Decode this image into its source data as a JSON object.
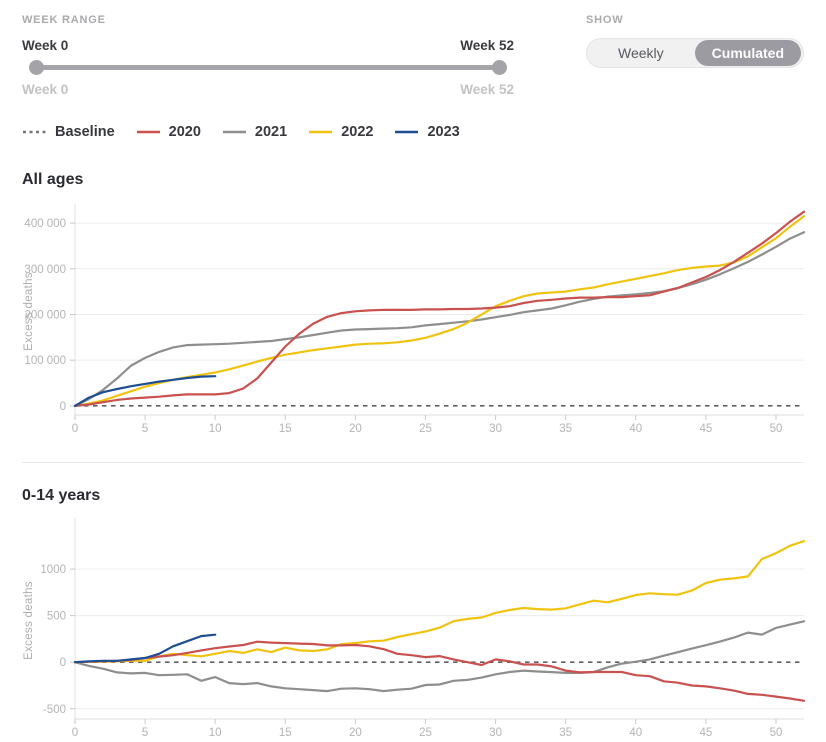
{
  "controls": {
    "week_range": {
      "label": "WEEK RANGE",
      "handle_start_value": "Week 0",
      "handle_end_value": "Week 52",
      "min_label": "Week 0",
      "max_label": "Week 52"
    },
    "show": {
      "label": "SHOW",
      "options": [
        "Weekly",
        "Cumulated"
      ],
      "selected": "Cumulated"
    }
  },
  "legend": {
    "items": [
      {
        "label": "Baseline",
        "color": "#77777b",
        "dashed": true
      },
      {
        "label": "2020",
        "color": "#c9514f",
        "dashed": false
      },
      {
        "label": "2021",
        "color": "#8e8e8e",
        "dashed": false
      },
      {
        "label": "2022",
        "color": "#f0c310",
        "dashed": false
      },
      {
        "label": "2023",
        "color": "#1d4e94",
        "dashed": false
      }
    ]
  },
  "chart_data": [
    {
      "type": "line",
      "title": "All ages",
      "xlabel": "",
      "ylabel": "Excess deaths",
      "x_unit": "week",
      "xlim": [
        0,
        52
      ],
      "ylim": [
        -20000,
        433000
      ],
      "xticks": [
        0,
        5,
        10,
        15,
        20,
        25,
        30,
        35,
        40,
        45,
        50
      ],
      "yticks": [
        {
          "value": 0,
          "label": "0"
        },
        {
          "value": 100000,
          "label": "100 000"
        },
        {
          "value": 200000,
          "label": "200 000"
        },
        {
          "value": 300000,
          "label": "300 000"
        },
        {
          "value": 400000,
          "label": "400 000"
        }
      ],
      "baseline_value": 0,
      "grid": true,
      "series": [
        {
          "name": "2020",
          "color": "#c9514f",
          "values": [
            0,
            3000,
            8000,
            13000,
            16000,
            18000,
            20000,
            23000,
            25000,
            25000,
            25000,
            28000,
            38000,
            60000,
            95000,
            130000,
            158000,
            180000,
            195000,
            203000,
            207000,
            209000,
            210000,
            210000,
            210000,
            211000,
            211000,
            212000,
            212000,
            213000,
            215000,
            218000,
            225000,
            230000,
            232000,
            235000,
            237000,
            237000,
            238000,
            238000,
            240000,
            242000,
            250000,
            258000,
            270000,
            282000,
            297000,
            315000,
            335000,
            355000,
            378000,
            403000,
            425000
          ]
        },
        {
          "name": "2021",
          "color": "#8e8e8e",
          "values": [
            0,
            15000,
            35000,
            60000,
            88000,
            105000,
            118000,
            128000,
            133000,
            134000,
            135000,
            136000,
            138000,
            140000,
            142000,
            146000,
            150000,
            155000,
            160000,
            165000,
            167000,
            168000,
            169000,
            170000,
            172000,
            176000,
            179000,
            182000,
            185000,
            189000,
            194000,
            199000,
            205000,
            209000,
            213000,
            220000,
            228000,
            234000,
            239000,
            242000,
            244000,
            247000,
            251000,
            258000,
            266000,
            276000,
            288000,
            301000,
            315000,
            331000,
            348000,
            366000,
            380000
          ]
        },
        {
          "name": "2022",
          "color": "#f0c310",
          "values": [
            0,
            5000,
            12000,
            22000,
            32000,
            42000,
            50000,
            57000,
            63000,
            68000,
            73000,
            80000,
            88000,
            97000,
            105000,
            112000,
            117000,
            122000,
            126000,
            130000,
            134000,
            136000,
            137000,
            139000,
            143000,
            149000,
            158000,
            168000,
            182000,
            200000,
            218000,
            230000,
            240000,
            246000,
            248000,
            250000,
            255000,
            259000,
            266000,
            272000,
            278000,
            284000,
            290000,
            297000,
            302000,
            305000,
            307000,
            314000,
            327000,
            347000,
            367000,
            392000,
            415000
          ]
        },
        {
          "name": "2023",
          "color": "#1d4e94",
          "values": [
            0,
            18000,
            30000,
            37000,
            43000,
            48000,
            53000,
            57000,
            61000,
            64000,
            65000
          ]
        }
      ]
    },
    {
      "type": "line",
      "title": "0-14 years",
      "xlabel": "",
      "ylabel": "Excess deaths",
      "x_unit": "week",
      "xlim": [
        0,
        52
      ],
      "ylim": [
        -610,
        1505
      ],
      "xticks": [
        0,
        5,
        10,
        15,
        20,
        25,
        30,
        35,
        40,
        45,
        50
      ],
      "yticks": [
        {
          "value": -500,
          "label": "-500"
        },
        {
          "value": 0,
          "label": "0"
        },
        {
          "value": 500,
          "label": "500"
        },
        {
          "value": 1000,
          "label": "1000"
        }
      ],
      "baseline_value": 0,
      "grid": true,
      "series": [
        {
          "name": "2020",
          "color": "#c9514f",
          "values": [
            0,
            5,
            10,
            15,
            25,
            45,
            60,
            75,
            100,
            127,
            150,
            168,
            185,
            220,
            210,
            205,
            200,
            195,
            180,
            180,
            185,
            170,
            140,
            90,
            75,
            55,
            65,
            30,
            0,
            -30,
            30,
            10,
            -25,
            -25,
            -45,
            -90,
            -110,
            -105,
            -105,
            -105,
            -140,
            -150,
            -205,
            -220,
            -250,
            -260,
            -280,
            -305,
            -340,
            -350,
            -370,
            -390,
            -415
          ]
        },
        {
          "name": "2021",
          "color": "#8e8e8e",
          "values": [
            0,
            -40,
            -70,
            -110,
            -120,
            -115,
            -140,
            -135,
            -130,
            -200,
            -160,
            -225,
            -235,
            -225,
            -260,
            -280,
            -290,
            -300,
            -310,
            -285,
            -280,
            -290,
            -310,
            -295,
            -285,
            -245,
            -240,
            -200,
            -190,
            -165,
            -130,
            -105,
            -90,
            -100,
            -107,
            -115,
            -115,
            -107,
            -55,
            -15,
            5,
            30,
            70,
            107,
            146,
            182,
            221,
            264,
            318,
            296,
            368,
            404,
            439
          ]
        },
        {
          "name": "2022",
          "color": "#f0c310",
          "values": [
            0,
            5,
            5,
            10,
            15,
            15,
            63,
            90,
            75,
            63,
            90,
            120,
            100,
            138,
            108,
            157,
            127,
            120,
            138,
            194,
            205,
            224,
            231,
            270,
            300,
            330,
            370,
            440,
            465,
            480,
            529,
            560,
            582,
            570,
            564,
            578,
            620,
            660,
            643,
            680,
            721,
            739,
            730,
            725,
            768,
            850,
            886,
            900,
            921,
            1107,
            1171,
            1250,
            1300
          ]
        },
        {
          "name": "2023",
          "color": "#1d4e94",
          "values": [
            0,
            10,
            15,
            15,
            30,
            45,
            90,
            170,
            225,
            280,
            295
          ]
        }
      ]
    }
  ]
}
